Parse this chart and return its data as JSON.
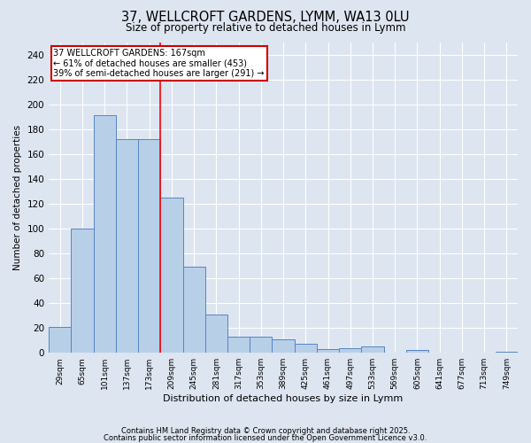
{
  "title": "37, WELLCROFT GARDENS, LYMM, WA13 0LU",
  "subtitle": "Size of property relative to detached houses in Lymm",
  "xlabel": "Distribution of detached houses by size in Lymm",
  "ylabel": "Number of detached properties",
  "categories": [
    "29sqm",
    "65sqm",
    "101sqm",
    "137sqm",
    "173sqm",
    "209sqm",
    "245sqm",
    "281sqm",
    "317sqm",
    "353sqm",
    "389sqm",
    "425sqm",
    "461sqm",
    "497sqm",
    "533sqm",
    "569sqm",
    "605sqm",
    "641sqm",
    "677sqm",
    "713sqm",
    "749sqm"
  ],
  "values": [
    21,
    100,
    191,
    172,
    172,
    125,
    69,
    31,
    13,
    13,
    11,
    7,
    3,
    4,
    5,
    0,
    2,
    0,
    0,
    0,
    1
  ],
  "bar_color": "#b8cfe8",
  "bar_edge_color": "#5585c5",
  "background_color": "#dde5f0",
  "grid_color": "#ffffff",
  "red_line_x": 4.5,
  "annotation_line1": "37 WELLCROFT GARDENS: 167sqm",
  "annotation_line2": "← 61% of detached houses are smaller (453)",
  "annotation_line3": "39% of semi-detached houses are larger (291) →",
  "annotation_box_color": "#ffffff",
  "annotation_box_edge_color": "#cc0000",
  "ylim": [
    0,
    250
  ],
  "yticks": [
    0,
    20,
    40,
    60,
    80,
    100,
    120,
    140,
    160,
    180,
    200,
    220,
    240
  ],
  "footer1": "Contains HM Land Registry data © Crown copyright and database right 2025.",
  "footer2": "Contains public sector information licensed under the Open Government Licence v3.0."
}
